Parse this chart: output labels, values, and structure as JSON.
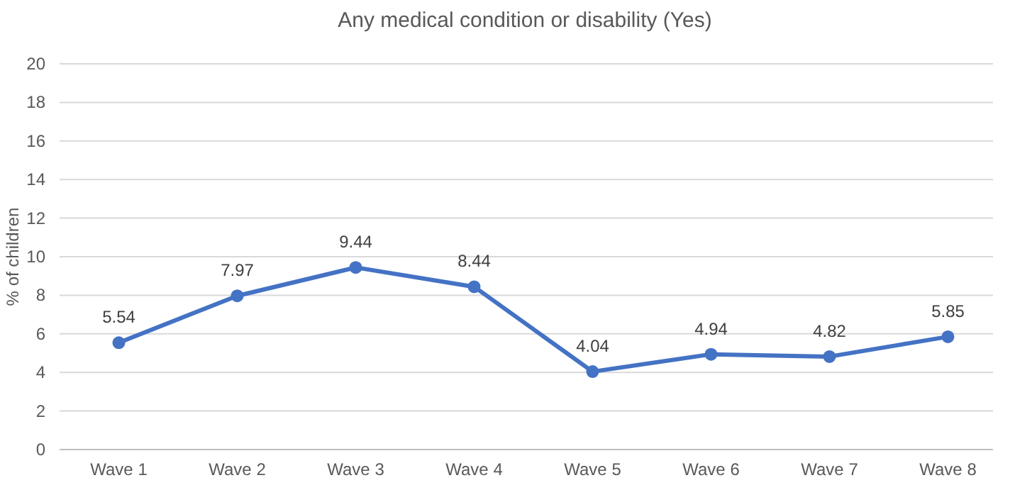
{
  "chart_data": {
    "type": "line",
    "title": "Any medical condition or disability (Yes)",
    "ylabel": "% of children",
    "categories": [
      "Wave 1",
      "Wave 2",
      "Wave 3",
      "Wave 4",
      "Wave 5",
      "Wave 6",
      "Wave 7",
      "Wave 8"
    ],
    "series": [
      {
        "color": "#4472c4",
        "values": [
          5.54,
          7.97,
          9.44,
          8.44,
          4.04,
          4.94,
          4.82,
          5.85
        ]
      }
    ],
    "ylim": [
      0,
      20
    ],
    "yticks": [
      0,
      2,
      4,
      6,
      8,
      10,
      12,
      14,
      16,
      18,
      20
    ],
    "grid": "y",
    "marker": "circle",
    "data_labels": true
  }
}
